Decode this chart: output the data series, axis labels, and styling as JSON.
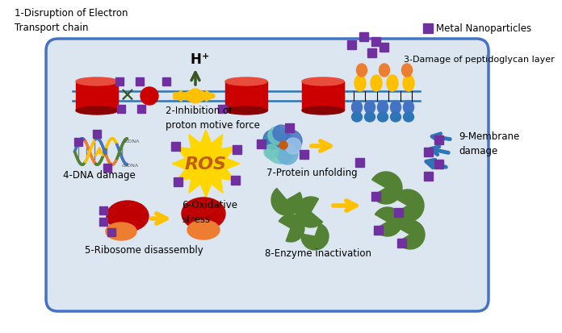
{
  "bg_color": "#ffffff",
  "cell_border_color": "#4472c4",
  "cell_fill": "#dce6f1",
  "purple": "#7030a0",
  "red": "#cc0000",
  "green": "#548235",
  "gold": "#ffc000",
  "blue": "#4472c4",
  "dark_green": "#375623",
  "labels": {
    "1": "1-Disruption of Electron\nTransport chain",
    "2": "2-Inhibition of\nproton motive force",
    "3": "3-Damage of peptidoglycan layer",
    "4": "4-DNA damage",
    "5": "5-Ribosome disassembly",
    "6": "6-Oxidative\nstress",
    "7": "7-Protein unfolding",
    "8": "8-Enzyme inactivation",
    "9": "9-Membrane\ndamage",
    "legend": "Metal Nanoparticles",
    "hplus": "H",
    "ros": "ROS"
  }
}
